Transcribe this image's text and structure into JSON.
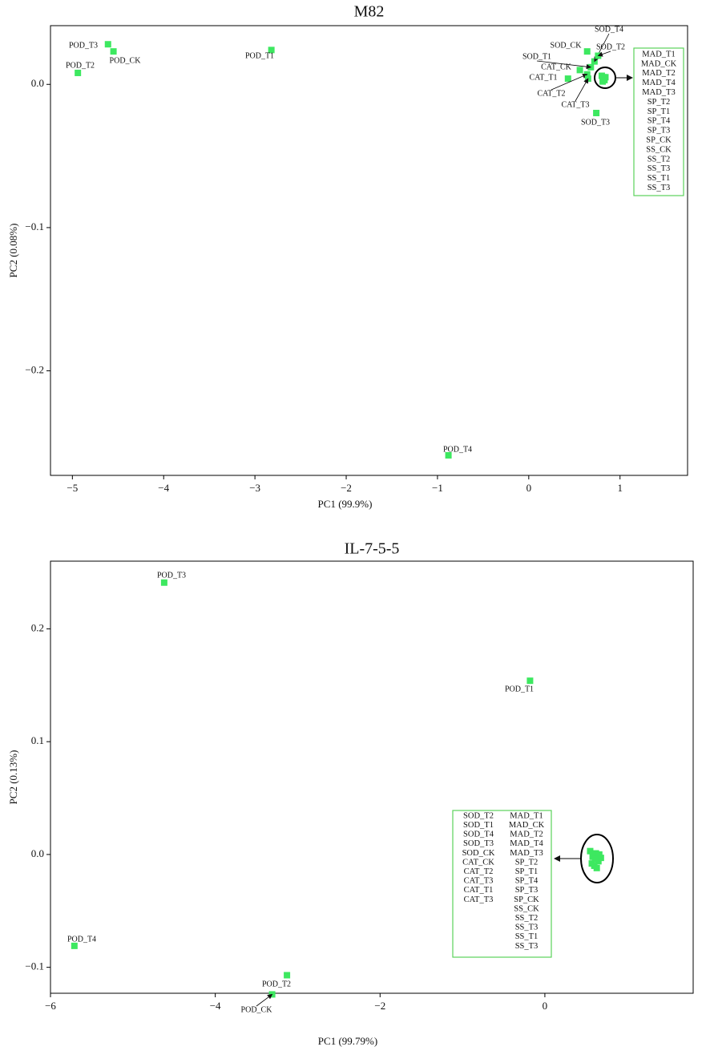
{
  "chart_data": [
    {
      "type": "scatter",
      "title": "M82",
      "xlabel": "PC1 (99.9%)",
      "ylabel": "PC2 (0.08%)",
      "color": "#3de860",
      "xlim": [
        -5.24,
        1.74
      ],
      "ylim": [
        -0.273,
        0.041
      ],
      "xticks": [
        {
          "value": -5,
          "label": "−5"
        },
        {
          "value": -4,
          "label": "−4"
        },
        {
          "value": -3,
          "label": "−3"
        },
        {
          "value": -2,
          "label": "−2"
        },
        {
          "value": -1,
          "label": "−1"
        },
        0,
        1
      ],
      "yticks": [
        {
          "value": -0.2,
          "label": "−0.2"
        },
        {
          "value": -0.1,
          "label": "−0.1"
        },
        {
          "value": 0,
          "label": "0.0"
        }
      ],
      "point_labels": [
        "POD_T3",
        "POD_CK",
        "POD_T2",
        "POD_T1",
        "POD_T4",
        "SOD_CK",
        "SOD_T4",
        "SOD_T2",
        "SOD_T1",
        "CAT_CK",
        "CAT_T1",
        "CAT_T2",
        "CAT_T3",
        "SOD_T3",
        null,
        null,
        null,
        null,
        null,
        null
      ],
      "x": [
        -4.61,
        -4.55,
        -4.94,
        -2.82,
        -0.88,
        0.64,
        0.72,
        0.76,
        0.68,
        0.56,
        0.43,
        0.64,
        0.65,
        0.74,
        0.8,
        0.82,
        0.84,
        0.81,
        0.83,
        0.82
      ],
      "values": [
        0.028,
        0.023,
        0.008,
        0.024,
        -0.259,
        0.023,
        0.016,
        0.02,
        0.012,
        0.01,
        0.004,
        0.007,
        0.004,
        -0.02,
        0.006,
        0.004,
        0.005,
        0.002,
        0.003,
        0.005
      ],
      "box_labels": [
        [
          "MAD_T1",
          "MAD_CK",
          "MAD_T2",
          "MAD_T4",
          "MAD_T3",
          "SP_T2",
          "SP_T1",
          "SP_T4",
          "SP_T3",
          "SP_CK",
          "SS_CK",
          "SS_T2",
          "SS_T3",
          "SS_T1",
          "SS_T3"
        ]
      ]
    },
    {
      "type": "scatter",
      "title": "IL-7-5-5",
      "xlabel": "PC1 (99.79%)",
      "ylabel": "PC2 (0.13%)",
      "color": "#3de860",
      "xlim": [
        -6,
        1.8
      ],
      "ylim": [
        -0.123,
        0.26
      ],
      "xticks": [
        {
          "value": -6,
          "label": "−6"
        },
        {
          "value": -4,
          "label": "−4"
        },
        {
          "value": -2,
          "label": "−2"
        },
        0
      ],
      "yticks": [
        {
          "value": -0.1,
          "label": "−0.1"
        },
        {
          "value": 0,
          "label": "0.0"
        },
        0.1,
        0.2
      ],
      "point_labels": [
        "POD_T3",
        "POD_T1",
        "POD_T4",
        "POD_T2",
        "POD_CK",
        null,
        null,
        null,
        null,
        null,
        null,
        null,
        null,
        null,
        null
      ],
      "x": [
        -4.62,
        -0.18,
        -5.71,
        -3.13,
        -3.31,
        0.55,
        0.58,
        0.62,
        0.65,
        0.68,
        0.6,
        0.63,
        0.57,
        0.66,
        0.61
      ],
      "values": [
        0.241,
        0.154,
        -0.081,
        -0.107,
        -0.124,
        0.003,
        -0.002,
        0.001,
        -0.006,
        -0.003,
        -0.01,
        -0.012,
        -0.008,
        0.0,
        -0.004
      ],
      "box_labels": [
        [
          "SOD_T2",
          "SOD_T1",
          "SOD_T4",
          "SOD_T3",
          "SOD_CK",
          "CAT_CK",
          "CAT_T2",
          "CAT_T3",
          "CAT_T1",
          "CAT_T3"
        ],
        [
          "MAD_T1",
          "MAD_CK",
          "MAD_T2",
          "MAD_T4",
          "MAD_T3",
          "SP_T2",
          "SP_T1",
          "SP_T4",
          "SP_T3",
          "SP_CK",
          "SS_CK",
          "SS_T2",
          "SS_T3",
          "SS_T1",
          "SS_T3"
        ]
      ]
    }
  ]
}
